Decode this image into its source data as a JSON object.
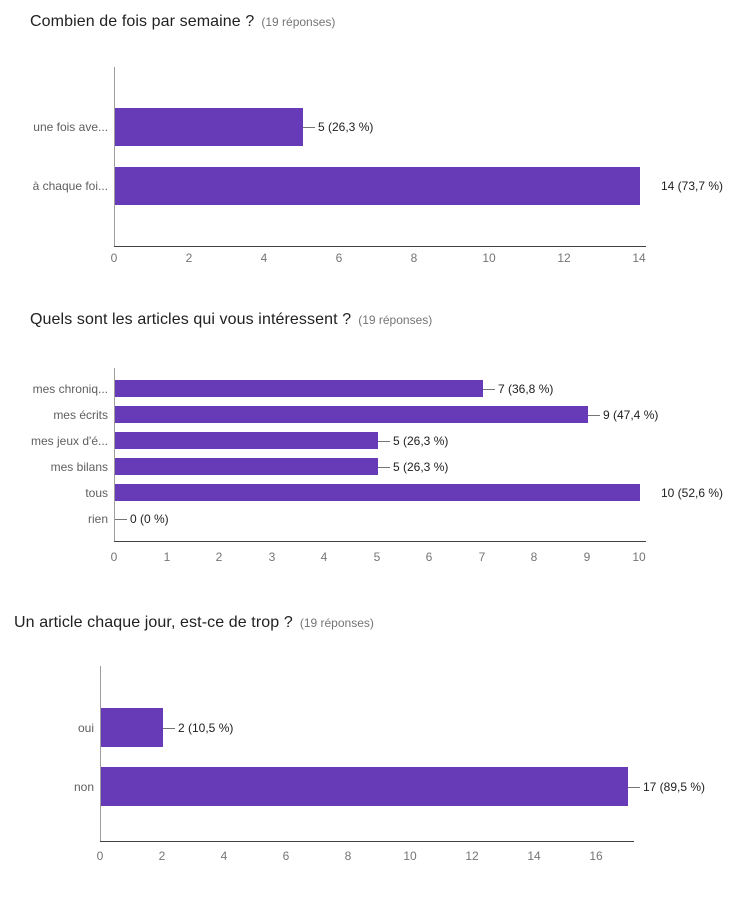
{
  "page": {
    "background": "#ffffff"
  },
  "chart_data": [
    {
      "type": "bar",
      "orientation": "horizontal",
      "title": "Combien de fois par semaine ?",
      "subtitle": "(19 réponses)",
      "categories": [
        "une fois ave...",
        "à chaque foi..."
      ],
      "values": [
        5,
        14
      ],
      "value_labels": [
        "5 (26,3 %)",
        "14 (73,7 %)"
      ],
      "leader_lines": [
        true,
        false
      ],
      "xlim": [
        0,
        14
      ],
      "x_ticks": [
        0,
        2,
        4,
        6,
        8,
        10,
        12,
        14
      ],
      "bar_color": "#673ab7",
      "grid": false,
      "legend": "none"
    },
    {
      "type": "bar",
      "orientation": "horizontal",
      "title": "Quels sont les articles qui vous intéressent ?",
      "subtitle": "(19 réponses)",
      "categories": [
        "mes chroniq...",
        "mes écrits",
        "mes jeux d'é...",
        "mes bilans",
        "tous",
        "rien"
      ],
      "values": [
        7,
        9,
        5,
        5,
        10,
        0
      ],
      "value_labels": [
        "7 (36,8 %)",
        "9 (47,4 %)",
        "5 (26,3 %)",
        "5 (26,3 %)",
        "10 (52,6 %)",
        "0 (0 %)"
      ],
      "leader_lines": [
        true,
        true,
        true,
        true,
        false,
        true
      ],
      "xlim": [
        0,
        10
      ],
      "x_ticks": [
        0,
        1,
        2,
        3,
        4,
        5,
        6,
        7,
        8,
        9,
        10
      ],
      "bar_color": "#673ab7",
      "grid": false,
      "legend": "none"
    },
    {
      "type": "bar",
      "orientation": "horizontal",
      "title": "Un article chaque jour, est-ce de trop ?",
      "subtitle": "(19 réponses)",
      "categories": [
        "oui",
        "non"
      ],
      "values": [
        2,
        17
      ],
      "value_labels": [
        "2 (10,5 %)",
        "17 (89,5 %)"
      ],
      "leader_lines": [
        true,
        true
      ],
      "xlim": [
        0,
        17
      ],
      "x_ticks": [
        0,
        2,
        4,
        6,
        8,
        10,
        12,
        14,
        16
      ],
      "bar_color": "#673ab7",
      "grid": false,
      "legend": "none"
    }
  ]
}
